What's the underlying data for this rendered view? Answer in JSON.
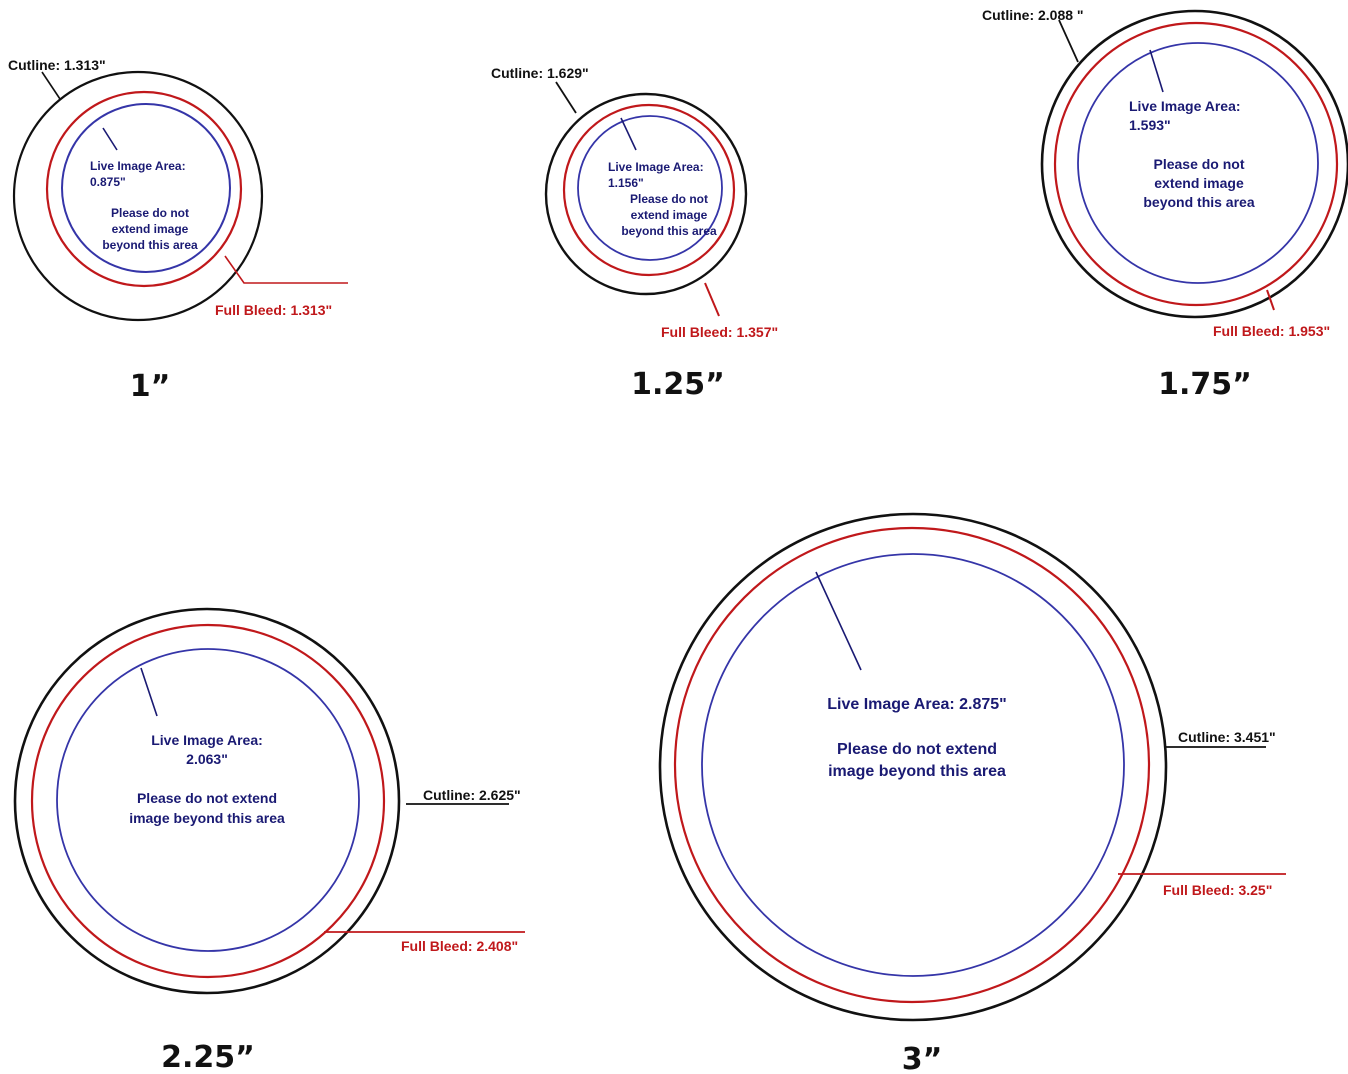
{
  "colors": {
    "cutline": "#111111",
    "bleed": "#c0181b",
    "live": "#3535a8",
    "live_text": "#1a1a73",
    "bleed_text": "#c0181b",
    "size_text": "#111111"
  },
  "diagrams": [
    {
      "size_label": "1”",
      "cutline": "Cutline: 1.313\"",
      "bleed": "Full Bleed: 1.313\"",
      "live": [
        "Live Image Area:",
        "0.875\""
      ],
      "note": [
        "Please do not",
        "extend image",
        "beyond this area"
      ]
    },
    {
      "size_label": "1.25”",
      "cutline": "Cutline: 1.629\"",
      "bleed": "Full Bleed: 1.357\"",
      "live": [
        "Live Image Area:",
        "1.156\""
      ],
      "note": [
        "Please do not",
        "extend image",
        "beyond this area"
      ]
    },
    {
      "size_label": "1.75”",
      "cutline": "Cutline: 2.088 \"",
      "bleed": "Full Bleed: 1.953\"",
      "live": [
        "Live Image Area:",
        "1.593\""
      ],
      "note": [
        "Please do not",
        "extend image",
        "beyond this area"
      ]
    },
    {
      "size_label": "2.25”",
      "cutline": "Cutline: 2.625\"",
      "bleed": "Full Bleed: 2.408\"",
      "live": [
        "Live Image Area:",
        "2.063\""
      ],
      "note": [
        "Please do not extend",
        "image beyond this area"
      ]
    },
    {
      "size_label": "3”",
      "cutline": "Cutline: 3.451\"",
      "bleed": "Full Bleed: 3.25\"",
      "live": [
        "Live Image Area: 2.875\""
      ],
      "note": [
        "Please do not extend",
        "image beyond this area"
      ]
    }
  ]
}
